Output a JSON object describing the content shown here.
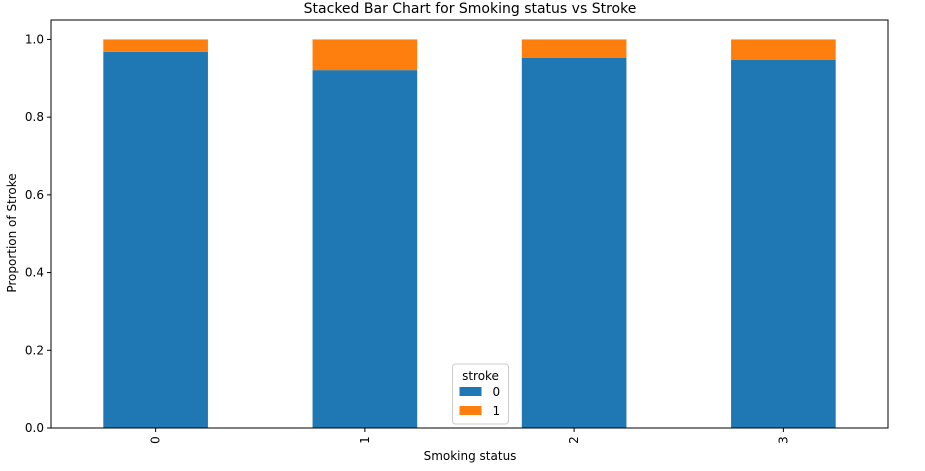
{
  "chart_data": {
    "type": "bar",
    "stacked": true,
    "title": "Stacked Bar Chart for Smoking status vs Stroke",
    "xlabel": "Smoking status",
    "ylabel": "Proportion of Stroke",
    "categories": [
      "0",
      "1",
      "2",
      "3"
    ],
    "ylim": [
      0,
      1.0
    ],
    "yticks": [
      "0.0",
      "0.2",
      "0.4",
      "0.6",
      "0.8",
      "1.0"
    ],
    "series": [
      {
        "name": "0",
        "color": "#1f77b4",
        "values": [
          0.968,
          0.921,
          0.953,
          0.947
        ]
      },
      {
        "name": "1",
        "color": "#ff7f0e",
        "values": [
          0.032,
          0.079,
          0.047,
          0.053
        ]
      }
    ],
    "legend": {
      "title": "stroke",
      "placement": "lower center"
    },
    "grid": false
  }
}
